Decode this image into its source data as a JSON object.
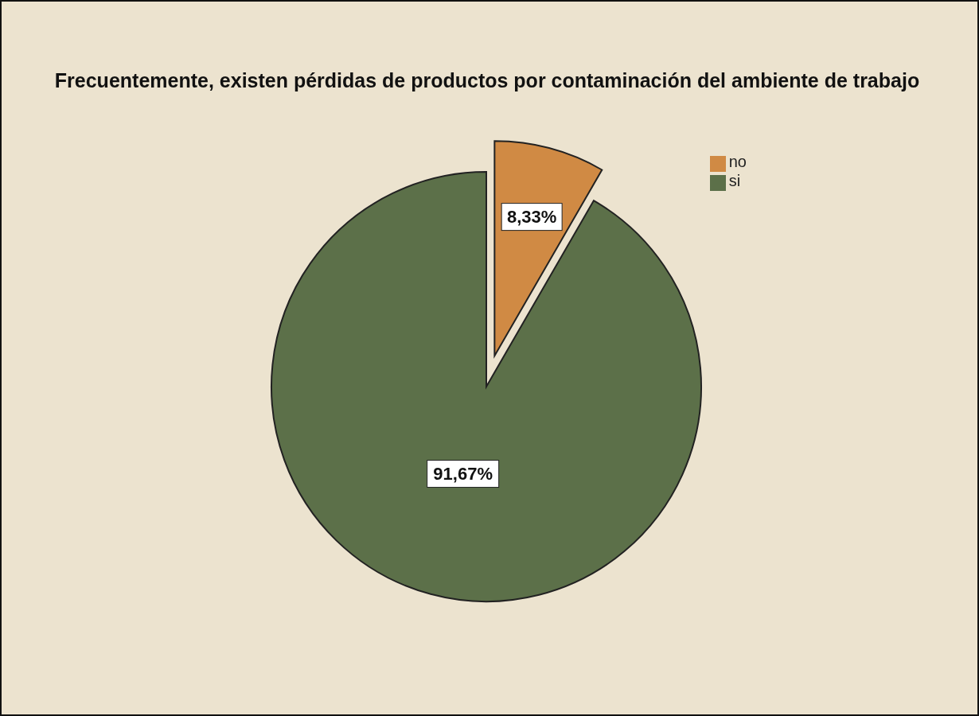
{
  "chart_data": {
    "type": "pie",
    "title": "Frecuentemente, existen pérdidas de productos por contaminación del ambiente de trabajo",
    "categories": [
      "no",
      "si"
    ],
    "values": [
      8.33,
      91.67
    ],
    "colors": [
      "#d08a44",
      "#5c7049"
    ],
    "value_labels": [
      "8,33%",
      "91,67%"
    ],
    "legend": "top right"
  }
}
